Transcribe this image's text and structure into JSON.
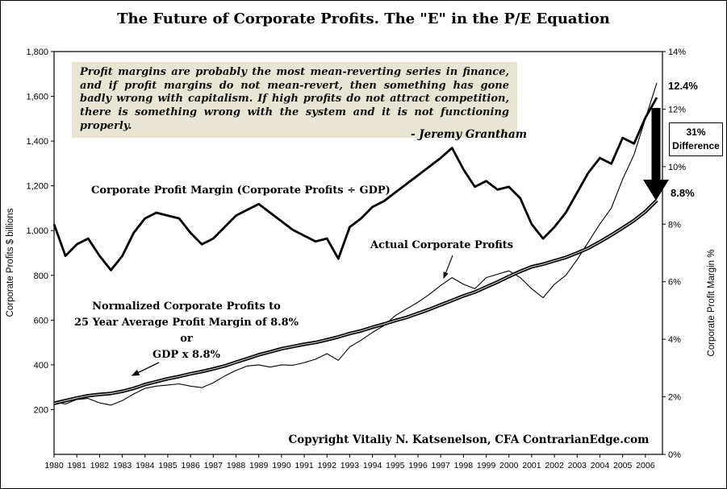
{
  "title": "The Future of Corporate Profits.  The \"E\" in the P/E Equation",
  "quote": {
    "text": "Profit margins are probably the most mean-reverting series in finance, and if profit margins do not mean-revert, then something has gone badly wrong with capitalism.  If high profits do not attract competition, there is something wrong with the system and it is not functioning properly.",
    "attribution": "- Jeremy Grantham"
  },
  "labels": {
    "margin_series": "Corporate Profit Margin (Corporate Profits ÷ GDP)",
    "actual_series": "Actual Corporate Profits",
    "normalized_line1": "Normalized Corporate Profits to",
    "normalized_line2": "25 Year Average Profit Margin of 8.8%",
    "normalized_line3": "or",
    "normalized_line4": "GDP x 8.8%",
    "copyright": "Copyright Vitaliy N. Katsenelson, CFA  ContrarianEdge.com"
  },
  "annotations": {
    "end_margin": "12.4%",
    "difference_line1": "31%",
    "difference_line2": "Difference",
    "normalized_margin": "8.8%"
  },
  "chart_data": {
    "type": "line",
    "title": "The Future of Corporate Profits. The \"E\" in the P/E Equation",
    "x_range": [
      1980,
      2006.75
    ],
    "left_axis": {
      "title": "Corporate Profits $ billions",
      "min": 0,
      "max": 1800,
      "ticks": [
        {
          "v": 1800,
          "label": "1,800"
        },
        {
          "v": 1600,
          "label": "1,600"
        },
        {
          "v": 1400,
          "label": "1,400"
        },
        {
          "v": 1200,
          "label": "1,200"
        },
        {
          "v": 1000,
          "label": "1,000"
        },
        {
          "v": 800,
          "label": "800"
        },
        {
          "v": 600,
          "label": "600"
        },
        {
          "v": 400,
          "label": "400"
        },
        {
          "v": 200,
          "label": "200"
        }
      ]
    },
    "right_axis": {
      "title": "Corporate Profit Margin %",
      "min": 0,
      "max": 14,
      "ticks": [
        {
          "v": 14,
          "label": "14%"
        },
        {
          "v": 12,
          "label": "12%"
        },
        {
          "v": 10,
          "label": "10%"
        },
        {
          "v": 8,
          "label": "8%"
        },
        {
          "v": 6,
          "label": "6%"
        },
        {
          "v": 4,
          "label": "4%"
        },
        {
          "v": 2,
          "label": "2%"
        },
        {
          "v": 0,
          "label": "0%"
        }
      ]
    },
    "x_ticks": [
      1980,
      1981,
      1982,
      1983,
      1984,
      1985,
      1986,
      1987,
      1988,
      1989,
      1990,
      1991,
      1992,
      1993,
      1994,
      1995,
      1996,
      1997,
      1998,
      1999,
      2000,
      2001,
      2002,
      2003,
      2004,
      2005,
      2006
    ],
    "x": [
      1980,
      1980.5,
      1981,
      1981.5,
      1982,
      1982.5,
      1983,
      1983.5,
      1984,
      1984.5,
      1985,
      1985.5,
      1986,
      1986.5,
      1987,
      1987.5,
      1988,
      1988.5,
      1989,
      1989.5,
      1990,
      1990.5,
      1991,
      1991.5,
      1992,
      1992.5,
      1993,
      1993.5,
      1994,
      1994.5,
      1995,
      1995.5,
      1996,
      1996.5,
      1997,
      1997.5,
      1998,
      1998.5,
      1999,
      1999.5,
      2000,
      2000.5,
      2001,
      2001.5,
      2002,
      2002.5,
      2003,
      2003.5,
      2004,
      2004.5,
      2005,
      2005.5,
      2006,
      2006.5
    ],
    "series": [
      {
        "id": "margin",
        "name": "Corporate Profit Margin (Corporate Profits ÷ GDP)",
        "axis": "right",
        "style": "thick",
        "unit": "%",
        "values": [
          8.0,
          6.9,
          7.3,
          7.5,
          6.9,
          6.4,
          6.9,
          7.7,
          8.2,
          8.4,
          8.3,
          8.2,
          7.7,
          7.3,
          7.5,
          7.9,
          8.3,
          8.5,
          8.7,
          8.4,
          8.1,
          7.8,
          7.6,
          7.4,
          7.5,
          6.8,
          7.9,
          8.2,
          8.6,
          8.8,
          9.1,
          9.4,
          9.7,
          10.0,
          10.3,
          10.65,
          9.9,
          9.3,
          9.5,
          9.2,
          9.3,
          8.9,
          8.0,
          7.5,
          7.9,
          8.4,
          9.1,
          9.8,
          10.3,
          10.1,
          11.0,
          10.8,
          11.7,
          12.4
        ],
        "end_value_label": "12.4%"
      },
      {
        "id": "actual",
        "name": "Actual Corporate Profits",
        "axis": "left",
        "style": "thin",
        "unit": "$ billions",
        "values": [
          235,
          225,
          245,
          250,
          230,
          220,
          240,
          270,
          295,
          305,
          310,
          315,
          305,
          298,
          320,
          350,
          375,
          395,
          400,
          390,
          400,
          398,
          410,
          425,
          450,
          420,
          480,
          510,
          545,
          575,
          620,
          650,
          680,
          715,
          755,
          790,
          760,
          740,
          790,
          805,
          820,
          790,
          740,
          700,
          760,
          800,
          870,
          950,
          1030,
          1100,
          1230,
          1340,
          1500,
          1660
        ]
      },
      {
        "id": "normalized",
        "name": "Normalized Corporate Profits to 25 Year Average Profit Margin of 8.8% (GDP x 8.8%)",
        "axis": "left",
        "style": "double",
        "unit": "$ billions",
        "values": [
          228,
          240,
          252,
          262,
          268,
          272,
          282,
          295,
          312,
          325,
          338,
          348,
          360,
          370,
          382,
          395,
          412,
          428,
          445,
          458,
          472,
          482,
          492,
          500,
          512,
          525,
          540,
          552,
          568,
          582,
          598,
          612,
          630,
          648,
          668,
          688,
          708,
          725,
          748,
          770,
          795,
          818,
          838,
          850,
          865,
          880,
          900,
          922,
          950,
          980,
          1012,
          1045,
          1085,
          1135
        ],
        "end_value_label": "8.8%"
      }
    ],
    "notes": {
      "difference_annotation": "31% Difference",
      "legend_position": "in-plot labels",
      "grid": "off"
    }
  }
}
